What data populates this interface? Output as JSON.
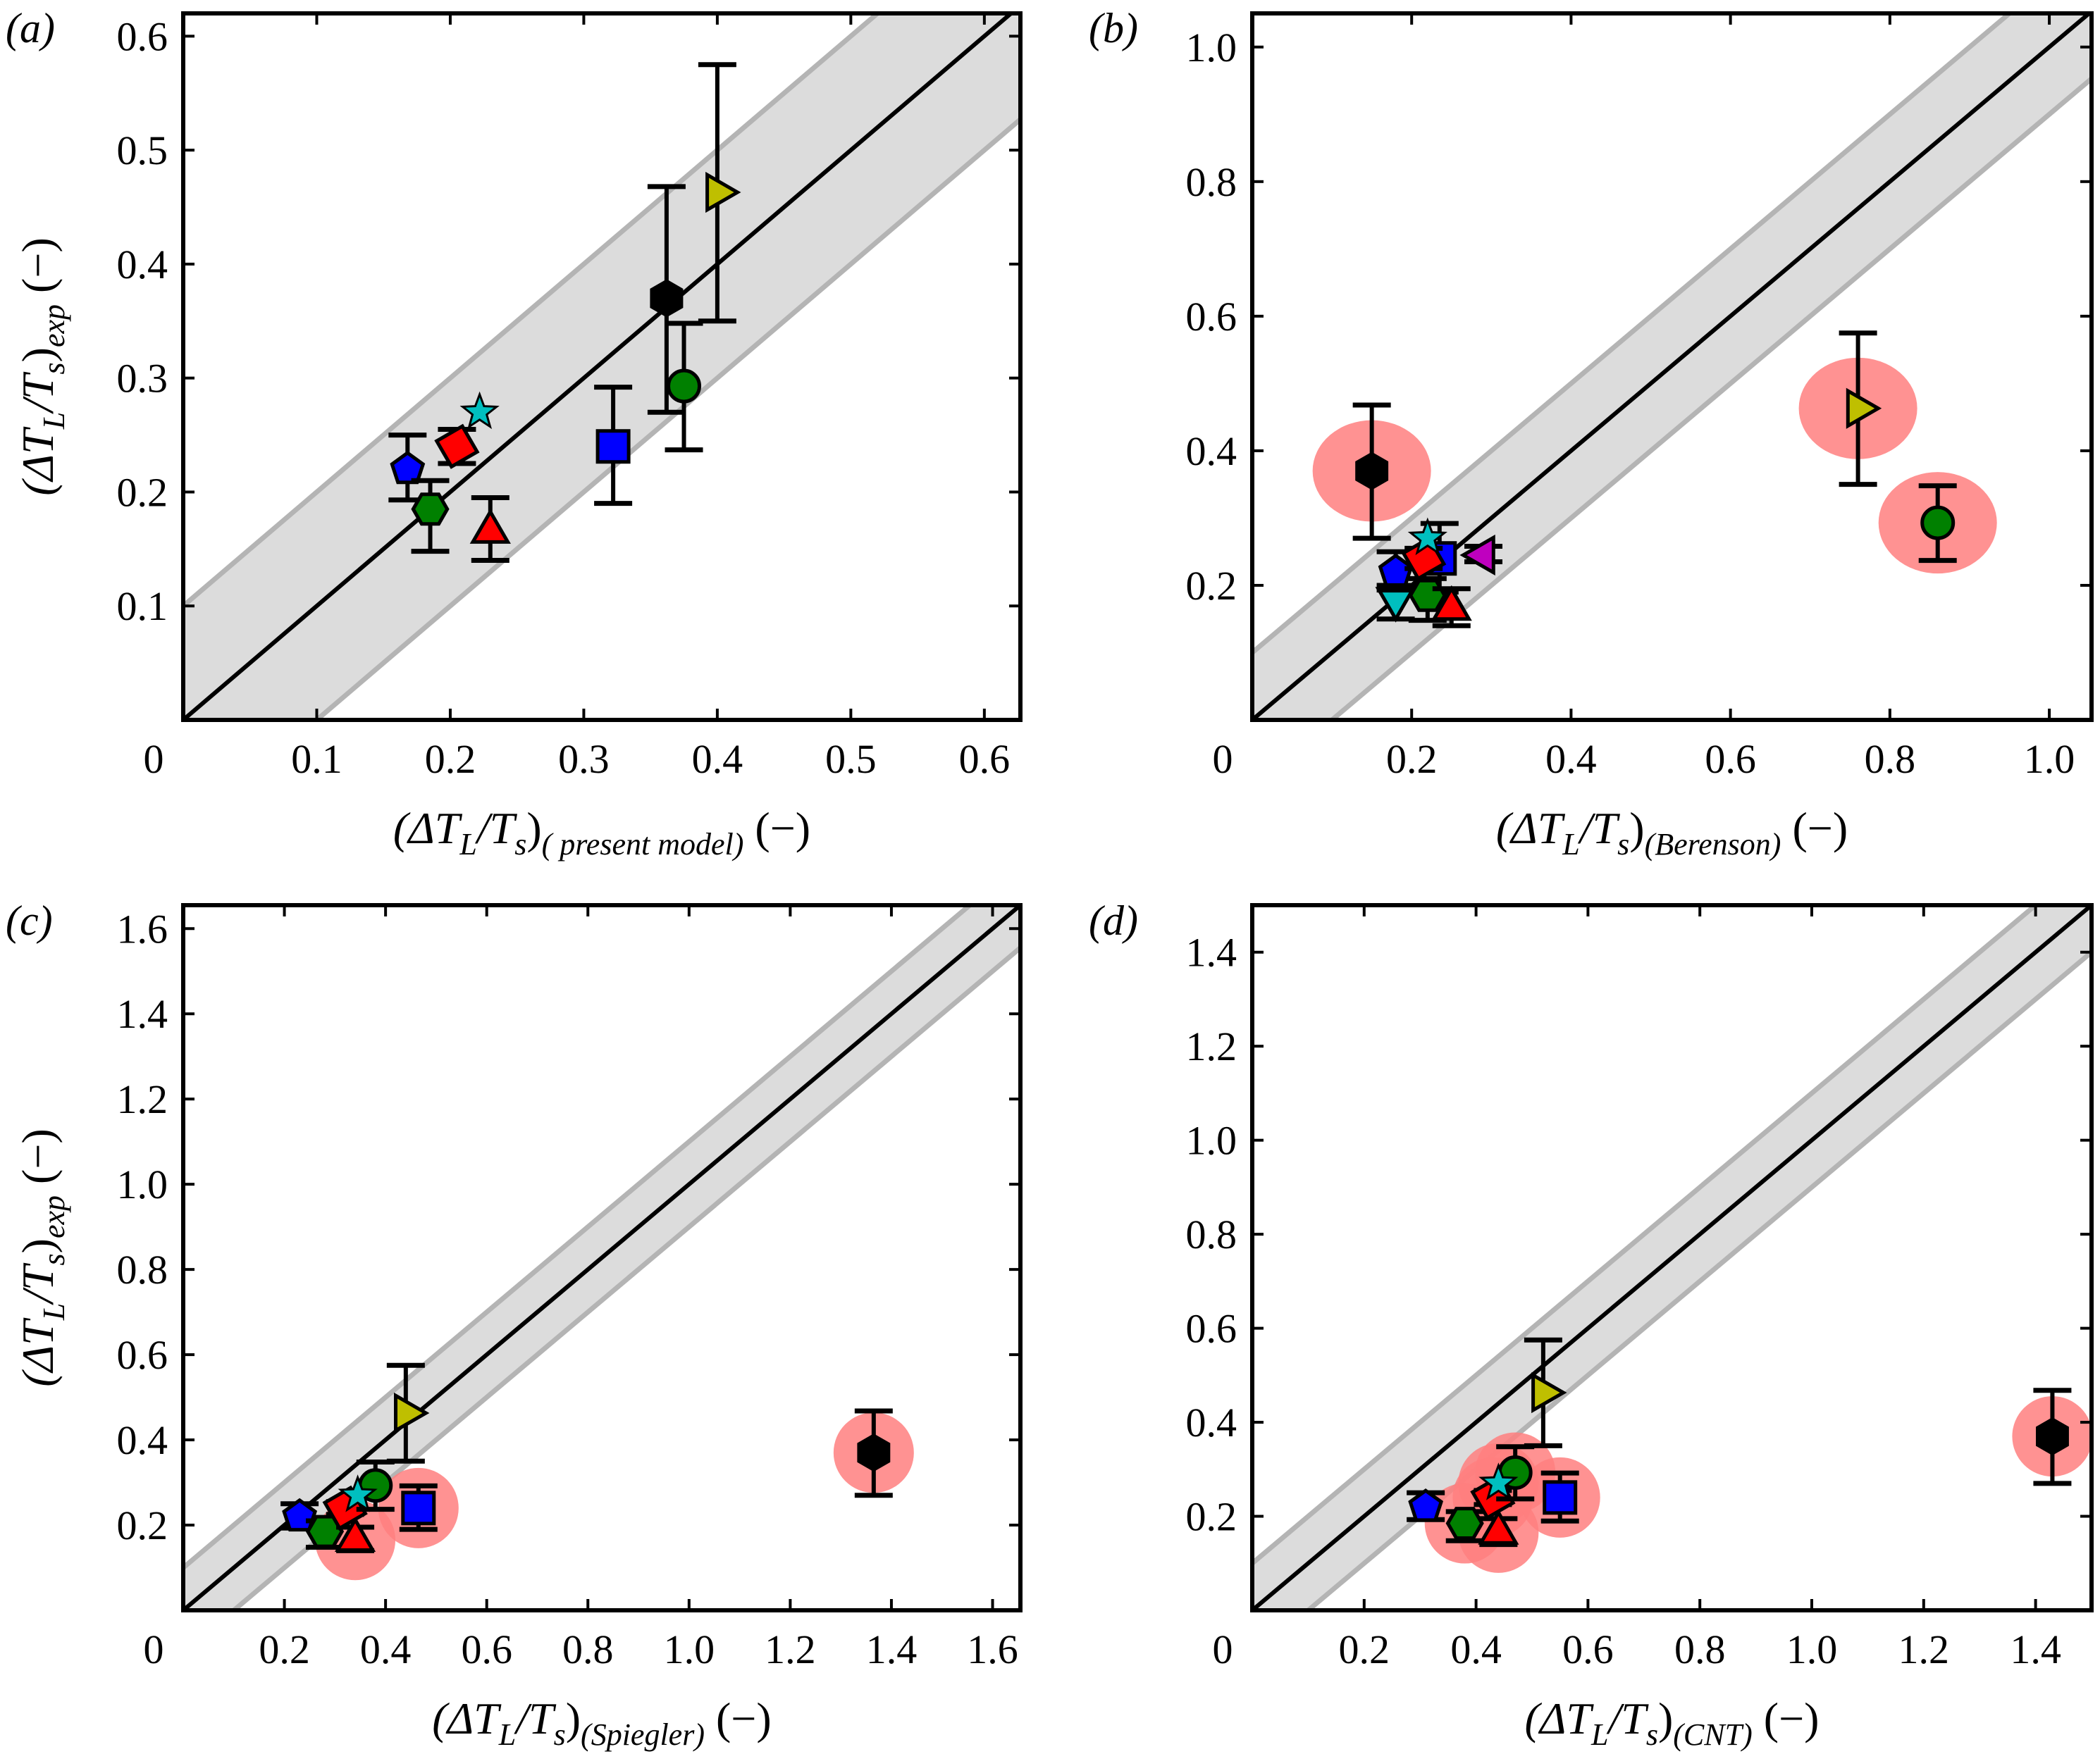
{
  "chart_data": [
    {
      "panel_label": "(a)",
      "type": "scatter",
      "xlim": [
        0,
        0.627
      ],
      "ylim": [
        0,
        0.62
      ],
      "xticks": [
        0,
        0.1,
        0.2,
        0.3,
        0.4,
        0.5,
        0.6
      ],
      "yticks": [
        0.1,
        0.2,
        0.3,
        0.4,
        0.5,
        0.6
      ],
      "xtick_labels": [
        "0",
        "0.1",
        "0.2",
        "0.3",
        "0.4",
        "0.5",
        "0.6"
      ],
      "ytick_labels": [
        "0.1",
        "0.2",
        "0.3",
        "0.4",
        "0.5",
        "0.6"
      ],
      "xlabel": {
        "pre": "(ΔT",
        "s1": "L",
        "mid": "/T",
        "s2": "s",
        "close": ")",
        "s3": "( present model)",
        "unit": " (−)"
      },
      "ylabel": {
        "pre": "(ΔT",
        "s1": "L",
        "mid": "/T",
        "s2": "s",
        "close": ")",
        "s3": "exp",
        "unit": " (−)"
      },
      "band_halfwidth": 0.1,
      "points": [
        {
          "marker": "pentagon",
          "color": "#0000ff",
          "x": 0.168,
          "y": 0.22,
          "yerr": [
            0.193,
            0.25
          ],
          "highlight": false
        },
        {
          "marker": "hexagon-flat",
          "color": "#008000",
          "x": 0.185,
          "y": 0.185,
          "yerr": [
            0.148,
            0.21
          ],
          "highlight": false
        },
        {
          "marker": "diamond",
          "color": "#ff0000",
          "x": 0.205,
          "y": 0.24,
          "yerr": [
            0.225,
            0.255
          ],
          "highlight": false
        },
        {
          "marker": "star",
          "color": "#00bfbf",
          "x": 0.222,
          "y": 0.27,
          "highlight": false
        },
        {
          "marker": "triangle-up",
          "color": "#ff0000",
          "x": 0.23,
          "y": 0.165,
          "yerr": [
            0.14,
            0.195
          ],
          "highlight": false
        },
        {
          "marker": "square",
          "color": "#0000ff",
          "x": 0.322,
          "y": 0.24,
          "yerr": [
            0.19,
            0.292
          ],
          "highlight": false
        },
        {
          "marker": "hexagon",
          "color": "#000000",
          "x": 0.362,
          "y": 0.37,
          "yerr": [
            0.27,
            0.468
          ],
          "highlight": false
        },
        {
          "marker": "circle",
          "color": "#008000",
          "x": 0.375,
          "y": 0.293,
          "yerr": [
            0.237,
            0.348
          ],
          "highlight": false
        },
        {
          "marker": "triangle-right",
          "color": "#bfbf00",
          "x": 0.4,
          "y": 0.463,
          "yerr": [
            0.35,
            0.575
          ],
          "highlight": false
        }
      ]
    },
    {
      "panel_label": "(b)",
      "type": "scatter",
      "xlim": [
        0,
        1.053
      ],
      "ylim": [
        0,
        1.05
      ],
      "xticks": [
        0,
        0.2,
        0.4,
        0.6,
        0.8,
        1.0
      ],
      "yticks": [
        0.2,
        0.4,
        0.6,
        0.8,
        1.0
      ],
      "xtick_labels": [
        "0",
        "0.2",
        "0.4",
        "0.6",
        "0.8",
        "1.0"
      ],
      "ytick_labels": [
        "0.2",
        "0.4",
        "0.6",
        "0.8",
        "1.0"
      ],
      "xlabel": {
        "pre": "(ΔT",
        "s1": "L",
        "mid": "/T",
        "s2": "s",
        "close": ")",
        "s3": "(Berenson)",
        "unit": " (−)"
      },
      "band_halfwidth": 0.1,
      "points": [
        {
          "marker": "hexagon",
          "color": "#000000",
          "x": 0.15,
          "y": 0.37,
          "yerr": [
            0.27,
            0.468
          ],
          "highlight": true
        },
        {
          "marker": "triangle-down",
          "color": "#00bfbf",
          "x": 0.18,
          "y": 0.18,
          "yerr": [
            0.15,
            0.2
          ],
          "highlight": false
        },
        {
          "marker": "pentagon",
          "color": "#0000ff",
          "x": 0.18,
          "y": 0.22,
          "yerr": [
            0.193,
            0.25
          ],
          "highlight": false
        },
        {
          "marker": "square",
          "color": "#0000ff",
          "x": 0.235,
          "y": 0.24,
          "yerr": [
            0.19,
            0.292
          ],
          "highlight": false
        },
        {
          "marker": "hexagon-flat",
          "color": "#008000",
          "x": 0.22,
          "y": 0.185,
          "yerr": [
            0.148,
            0.21
          ],
          "highlight": false
        },
        {
          "marker": "diamond",
          "color": "#ff0000",
          "x": 0.215,
          "y": 0.24,
          "yerr": [
            0.225,
            0.255
          ],
          "highlight": false
        },
        {
          "marker": "star",
          "color": "#00bfbf",
          "x": 0.22,
          "y": 0.27,
          "highlight": false
        },
        {
          "marker": "triangle-up",
          "color": "#ff0000",
          "x": 0.25,
          "y": 0.165,
          "yerr": [
            0.14,
            0.195
          ],
          "highlight": false
        },
        {
          "marker": "triangle-left",
          "color": "#bf00bf",
          "x": 0.29,
          "y": 0.245,
          "yerr": [
            0.235,
            0.258
          ],
          "highlight": false
        },
        {
          "marker": "triangle-right",
          "color": "#bfbf00",
          "x": 0.76,
          "y": 0.463,
          "yerr": [
            0.35,
            0.575
          ],
          "highlight": true
        },
        {
          "marker": "circle",
          "color": "#008000",
          "x": 0.86,
          "y": 0.293,
          "yerr": [
            0.237,
            0.348
          ],
          "highlight": true
        }
      ]
    },
    {
      "panel_label": "(c)",
      "type": "scatter",
      "xlim": [
        0,
        1.655
      ],
      "ylim": [
        0,
        1.655
      ],
      "xticks": [
        0,
        0.2,
        0.4,
        0.6,
        0.8,
        1.0,
        1.2,
        1.4,
        1.6
      ],
      "yticks": [
        0.2,
        0.4,
        0.6,
        0.8,
        1.0,
        1.2,
        1.4,
        1.6
      ],
      "xtick_labels": [
        "0",
        "0.2",
        "0.4",
        "0.6",
        "0.8",
        "1.0",
        "1.2",
        "1.4",
        "1.6"
      ],
      "ytick_labels": [
        "0.2",
        "0.4",
        "0.6",
        "0.8",
        "1.0",
        "1.2",
        "1.4",
        "1.6"
      ],
      "xlabel": {
        "pre": "(ΔT",
        "s1": "L",
        "mid": "/T",
        "s2": "s",
        "close": ")",
        "s3": "(Spiegler)",
        "unit": " (−)"
      },
      "ylabel": {
        "pre": "(ΔT",
        "s1": "L",
        "mid": "/T",
        "s2": "s",
        "close": ")",
        "s3": "exp",
        "unit": " (−)"
      },
      "band_halfwidth": 0.1,
      "points": [
        {
          "marker": "pentagon",
          "color": "#0000ff",
          "x": 0.23,
          "y": 0.22,
          "yerr": [
            0.193,
            0.25
          ],
          "highlight": false
        },
        {
          "marker": "hexagon-flat",
          "color": "#008000",
          "x": 0.28,
          "y": 0.185,
          "yerr": [
            0.148,
            0.21
          ],
          "highlight": false
        },
        {
          "marker": "triangle-up",
          "color": "#ff0000",
          "x": 0.34,
          "y": 0.165,
          "yerr": [
            0.14,
            0.195
          ],
          "highlight": true
        },
        {
          "marker": "diamond",
          "color": "#ff0000",
          "x": 0.32,
          "y": 0.24,
          "yerr": [
            0.225,
            0.255
          ],
          "highlight": false
        },
        {
          "marker": "circle",
          "color": "#008000",
          "x": 0.38,
          "y": 0.293,
          "yerr": [
            0.237,
            0.348
          ],
          "highlight": false
        },
        {
          "marker": "star",
          "color": "#00bfbf",
          "x": 0.345,
          "y": 0.27,
          "highlight": false
        },
        {
          "marker": "square",
          "color": "#0000ff",
          "x": 0.465,
          "y": 0.24,
          "yerr": [
            0.19,
            0.292
          ],
          "highlight": true
        },
        {
          "marker": "triangle-right",
          "color": "#bfbf00",
          "x": 0.44,
          "y": 0.463,
          "yerr": [
            0.35,
            0.575
          ],
          "highlight": false
        },
        {
          "marker": "hexagon",
          "color": "#000000",
          "x": 1.365,
          "y": 0.37,
          "yerr": [
            0.27,
            0.468
          ],
          "highlight": true
        }
      ]
    },
    {
      "panel_label": "(d)",
      "type": "scatter",
      "xlim": [
        0,
        1.5
      ],
      "ylim": [
        0,
        1.5
      ],
      "xticks": [
        0,
        0.2,
        0.4,
        0.6,
        0.8,
        1.0,
        1.2,
        1.4
      ],
      "yticks": [
        0.2,
        0.4,
        0.6,
        0.8,
        1.0,
        1.2,
        1.4
      ],
      "xtick_labels": [
        "0",
        "0.2",
        "0.4",
        "0.6",
        "0.8",
        "1.0",
        "1.2",
        "1.4"
      ],
      "ytick_labels": [
        "0.2",
        "0.4",
        "0.6",
        "0.8",
        "1.0",
        "1.2",
        "1.4"
      ],
      "xlabel": {
        "pre": "(ΔT",
        "s1": "L",
        "mid": "/T",
        "s2": "s",
        "close": ")",
        "s3": "(CNT)",
        "unit": " (−)"
      },
      "band_halfwidth": 0.1,
      "points": [
        {
          "marker": "pentagon",
          "color": "#0000ff",
          "x": 0.31,
          "y": 0.22,
          "yerr": [
            0.193,
            0.25
          ],
          "highlight": false
        },
        {
          "marker": "hexagon-flat",
          "color": "#008000",
          "x": 0.38,
          "y": 0.185,
          "yerr": [
            0.148,
            0.21
          ],
          "highlight": true
        },
        {
          "marker": "triangle-up",
          "color": "#ff0000",
          "x": 0.44,
          "y": 0.165,
          "yerr": [
            0.14,
            0.195
          ],
          "highlight": true
        },
        {
          "marker": "diamond",
          "color": "#ff0000",
          "x": 0.43,
          "y": 0.24,
          "yerr": [
            0.225,
            0.255
          ],
          "highlight": true
        },
        {
          "marker": "circle",
          "color": "#008000",
          "x": 0.47,
          "y": 0.293,
          "yerr": [
            0.237,
            0.348
          ],
          "highlight": true
        },
        {
          "marker": "star",
          "color": "#00bfbf",
          "x": 0.44,
          "y": 0.27,
          "highlight": true
        },
        {
          "marker": "square",
          "color": "#0000ff",
          "x": 0.55,
          "y": 0.24,
          "yerr": [
            0.19,
            0.292
          ],
          "highlight": true
        },
        {
          "marker": "triangle-right",
          "color": "#bfbf00",
          "x": 0.52,
          "y": 0.463,
          "yerr": [
            0.35,
            0.575
          ],
          "highlight": false
        },
        {
          "marker": "hexagon",
          "color": "#000000",
          "x": 1.43,
          "y": 0.37,
          "yerr": [
            0.27,
            0.468
          ],
          "highlight": true
        }
      ]
    }
  ],
  "colors": {
    "band_fill": "#dcdcdc",
    "band_edge": "#b4b4b4",
    "highlight": "#ff7f7f",
    "parity_line": "#000000"
  }
}
